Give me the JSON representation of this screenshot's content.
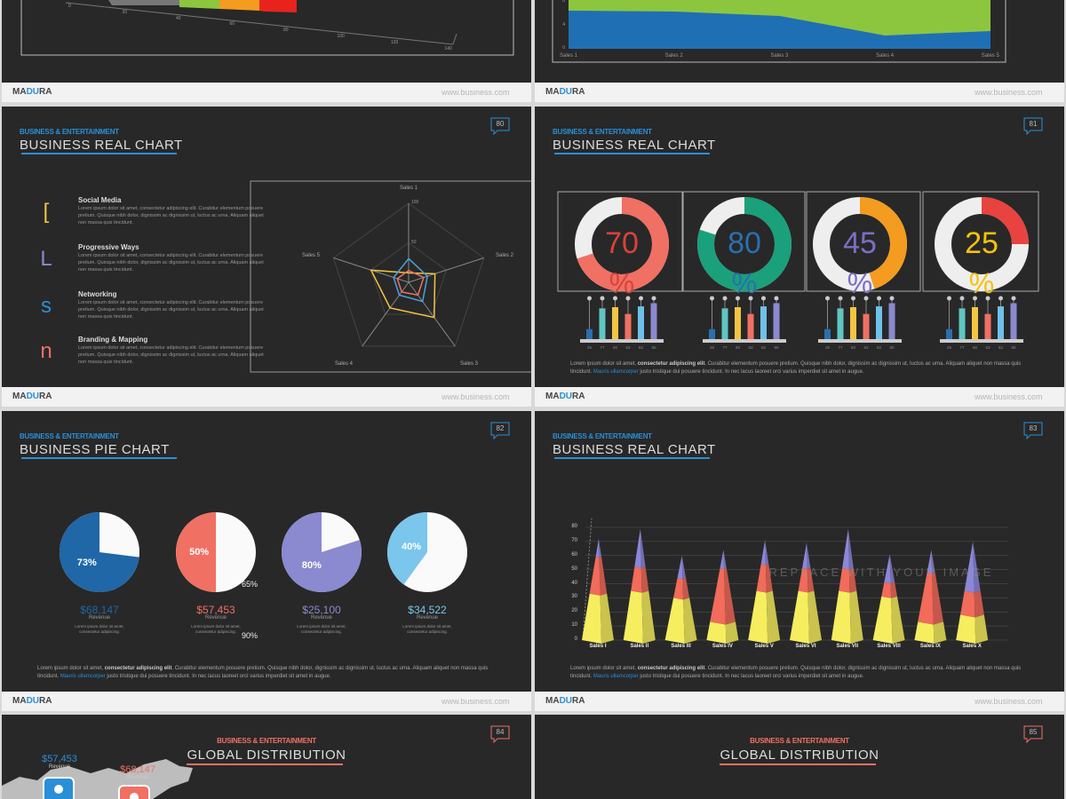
{
  "footer": {
    "brand": [
      "MA",
      "DU",
      "RA"
    ],
    "url": "www.business.com"
  },
  "text": {
    "item": "Lorem ipsum dolor sit amet, consectetur adipiscing elit. Curabitur elementum posuere pretium. Quisque nibh dolor, dignissim ac dignissim ut, luctus ac urna. Aliquam aliquet non massa quis tincidunt.",
    "para": [
      "Lorem ipsum dolor sit amet, ",
      "consectetur adipiscing elit",
      ". Curabitur elementum posuere pretium. Quisque nibh dolor, dignissim ac dignissim ut, luctus ac urna. Aliquam aliquet non massa quis tincidunt. ",
      "Mauris ullamcorper",
      " justo tristique dui posuere tincidunt. In nec lacus laoreet orci varius imperdiet sit amet in augue."
    ],
    "short": "Lorem ipsum dolor sit amet, consectetur adipiscing."
  },
  "bar3d_partial": {
    "ticks": [
      0,
      20,
      40,
      60,
      80,
      100,
      120,
      140
    ]
  },
  "area_partial": {
    "y_ticks": [
      8,
      4,
      0
    ],
    "categories": [
      "Sales 1",
      "Sales 2",
      "Sales 3",
      "Sales 4",
      "Sales 5"
    ]
  },
  "slide80": {
    "number": "80",
    "kicker": "BUSINESS & ENTERTAINMENT",
    "title": "BUSINESS REAL CHART",
    "items": [
      {
        "icon": "[",
        "heading": "Social Media",
        "color": "#f4c542"
      },
      {
        "icon": "L",
        "heading": "Progressive Ways",
        "color": "#8b89cf"
      },
      {
        "icon": "s",
        "heading": "Networking",
        "color": "#2a8fd6"
      },
      {
        "icon": "n",
        "heading": "Branding & Mapping",
        "color": "#f07063"
      }
    ],
    "radar": {
      "axes": [
        "Sales 1",
        "Sales 2",
        "Sales 3",
        "Sales 4",
        "Sales 5"
      ],
      "range": [
        0,
        100
      ],
      "ticks": [
        50,
        100
      ],
      "series": [
        {
          "color": "#f4c542",
          "values": [
            12,
            35,
            55,
            40,
            50
          ]
        },
        {
          "color": "#4aa3df",
          "values": [
            30,
            25,
            30,
            20,
            20
          ]
        },
        {
          "color": "#f07063",
          "values": [
            15,
            20,
            20,
            15,
            15
          ]
        }
      ]
    }
  },
  "slide81": {
    "number": "81",
    "kicker": "BUSINESS & ENTERTAINMENT",
    "title": "BUSINESS REAL CHART",
    "percent": "%",
    "donuts": [
      {
        "value": 70,
        "color": "#f07063",
        "text_color": "#d9423a"
      },
      {
        "value": 80,
        "color": "#1aa07a",
        "text_color": "#2a6fb0"
      },
      {
        "value": 45,
        "color": "#f39c1f",
        "text_color": "#7b6fc4"
      },
      {
        "value": 25,
        "color": "#e8433e",
        "text_color": "#f4c20d"
      }
    ],
    "bars": {
      "values": [
        25,
        77,
        80,
        63,
        82,
        90
      ],
      "colors": [
        "#2a6fb0",
        "#5fc6c2",
        "#f4c542",
        "#f07063",
        "#6ec1ea",
        "#8b89cf"
      ]
    }
  },
  "slide82": {
    "number": "82",
    "kicker": "BUSINESS & ENTERTAINMENT",
    "title": "BUSINESS PIE CHART",
    "values": [
      73,
      50,
      80,
      40
    ],
    "value_labels": [
      "73%",
      "50%",
      "80%",
      "40%"
    ],
    "colors": [
      "#1f67a6",
      "#f07063",
      "#8b89cf",
      "#7bc6ec"
    ],
    "amounts": [
      "$68,147",
      "$57,453",
      "$25,100",
      "$34,522"
    ],
    "caption": "Revenue",
    "stray_labels": [
      "65%",
      "90%"
    ]
  },
  "slide83": {
    "number": "83",
    "kicker": "BUSINESS & ENTERTAINMENT",
    "title": "BUSINESS REAL CHART",
    "watermark": "REPLACE WITH YOUR IMAGE",
    "ylim": [
      0,
      80
    ],
    "yticks": [
      0,
      10,
      20,
      30,
      40,
      50,
      60,
      70,
      80
    ],
    "categories": [
      "Sales I",
      "Sales II",
      "Sales III",
      "Sales IV",
      "Sales V",
      "Sales VI",
      "Sales VII",
      "Sales VIII",
      "Sales IX",
      "Sales X"
    ],
    "series": [
      {
        "color": "#f6ee5f",
        "values": [
          33,
          35,
          30,
          13,
          35,
          35,
          35,
          31,
          13,
          18
        ]
      },
      {
        "color": "#f26b5b",
        "values": [
          26,
          17,
          14,
          38,
          19,
          16,
          16,
          10,
          35,
          17
        ]
      },
      {
        "color": "#8c87d8",
        "values": [
          13,
          27,
          16,
          13,
          17,
          18,
          28,
          20,
          16,
          35
        ]
      }
    ]
  },
  "slide84": {
    "number": "84",
    "kicker": "BUSINESS & ENTERTAINMENT",
    "title": "GLOBAL DISTRIBUTION",
    "stats": [
      {
        "amount": "$57,453",
        "label": "Revenue"
      },
      {
        "amount": "$68,147",
        "label": "Revenue"
      }
    ]
  },
  "slide85": {
    "number": "85",
    "kicker": "BUSINESS & ENTERTAINMENT",
    "title": "GLOBAL DISTRIBUTION"
  }
}
